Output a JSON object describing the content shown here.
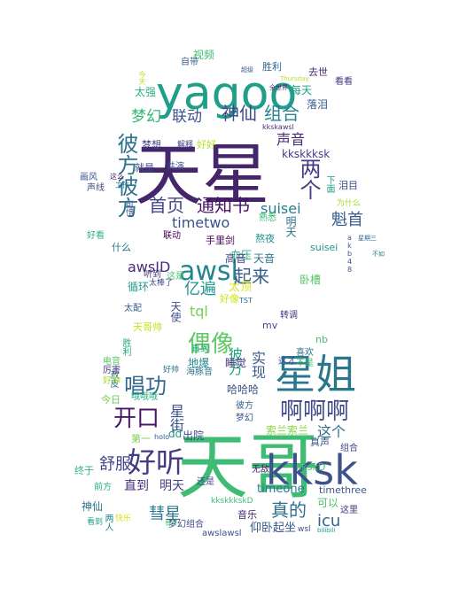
{
  "words": [
    {
      "text": "天星",
      "color": "#44276b"
    },
    {
      "text": "yagoo",
      "color": "#1f9e89"
    },
    {
      "text": "天哥",
      "color": "#3fbc73"
    },
    {
      "text": "kksk",
      "color": "#3b528b"
    },
    {
      "text": "星姐",
      "color": "#2a768e"
    },
    {
      "text": "好听",
      "color": "#443a83"
    },
    {
      "text": "啊啊啊",
      "color": "#3e4a89"
    },
    {
      "text": "awsl",
      "color": "#25858e"
    },
    {
      "text": "偶像",
      "color": "#5ec962"
    },
    {
      "text": "彼方彼方",
      "color": "#2c728e"
    },
    {
      "text": "唱功",
      "color": "#31688e"
    },
    {
      "text": "两个",
      "color": "#433e85"
    },
    {
      "text": "梦幻",
      "color": "#35b779"
    },
    {
      "text": "联动",
      "color": "#3a548c"
    },
    {
      "text": "神仙",
      "color": "#3f4889"
    },
    {
      "text": "组合",
      "color": "#26828e"
    },
    {
      "text": "起来",
      "color": "#355f8d"
    },
    {
      "text": "首页",
      "color": "#414487"
    },
    {
      "text": "通知书",
      "color": "#471365"
    },
    {
      "text": "魁首",
      "color": "#365d8d"
    },
    {
      "text": "开口",
      "color": "#481668"
    },
    {
      "text": "真的",
      "color": "#2d708e"
    },
    {
      "text": "icu",
      "color": "#31678e"
    },
    {
      "text": "彗星",
      "color": "#297a8e"
    },
    {
      "text": "舒服",
      "color": "#404688"
    },
    {
      "text": "亿遍",
      "color": "#1f968b"
    },
    {
      "text": "timetwo",
      "color": "#3b528b"
    },
    {
      "text": "suisei",
      "color": "#287d8e"
    },
    {
      "text": "awsID",
      "color": "#472d7b"
    },
    {
      "text": "tql",
      "color": "#7ad151"
    },
    {
      "text": "声音",
      "color": "#482878"
    },
    {
      "text": "直到",
      "color": "#46327e"
    },
    {
      "text": "明天",
      "color": "#423f85"
    },
    {
      "text": "这个",
      "color": "#2e6f8e"
    },
    {
      "text": "实现",
      "color": "#38588c"
    },
    {
      "text": "彼方",
      "color": "#21a585"
    },
    {
      "text": "星街",
      "color": "#3b518b"
    },
    {
      "text": "timeone",
      "color": "#2a788e"
    },
    {
      "text": "视频",
      "color": "#3dbc74"
    },
    {
      "text": "太强",
      "color": "#2ab07f"
    },
    {
      "text": "每天",
      "color": "#1fa187"
    },
    {
      "text": "落泪",
      "color": "#365c8d"
    },
    {
      "text": "kkskkksk",
      "color": "#443b84"
    },
    {
      "text": "梦想",
      "color": "#404588"
    },
    {
      "text": "好好",
      "color": "#b5de2b"
    },
    {
      "text": "就是",
      "color": "#3e4c8a"
    },
    {
      "text": "血压",
      "color": "#25ab82"
    },
    {
      "text": "高音",
      "color": "#3f4788"
    },
    {
      "text": "天音",
      "color": "#2b758e"
    },
    {
      "text": "卧槽",
      "color": "#54c568"
    },
    {
      "text": "太顶",
      "color": "#dde318"
    },
    {
      "text": "循环",
      "color": "#1f9a8a"
    },
    {
      "text": "什么",
      "color": "#2a768e"
    },
    {
      "text": "睡觉",
      "color": "#46307e"
    },
    {
      "text": "哈哈哈",
      "color": "#3a538b"
    },
    {
      "text": "地爆",
      "color": "#23888e"
    },
    {
      "text": "出院",
      "color": "#3e4989"
    },
    {
      "text": "今日",
      "color": "#6ece58"
    },
    {
      "text": "索兰索兰",
      "color": "#8bd646"
    },
    {
      "text": "前方",
      "color": "#29af7f"
    },
    {
      "text": "神仙",
      "color": "#2c738e"
    },
    {
      "text": "可以",
      "color": "#4ac16d"
    },
    {
      "text": "音乐",
      "color": "#482071"
    },
    {
      "text": "timethree",
      "color": "#39568c"
    },
    {
      "text": "这里",
      "color": "#46337f"
    },
    {
      "text": "组合",
      "color": "#424086"
    },
    {
      "text": "真声",
      "color": "#3a548c"
    },
    {
      "text": "仰卧起坐",
      "color": "#38598c"
    },
    {
      "text": "dd",
      "color": "#1f998a"
    },
    {
      "text": "第一",
      "color": "#7ad151"
    },
    {
      "text": "终于",
      "color": "#2fb47c"
    },
    {
      "text": "kkskD",
      "color": "#44bf70"
    },
    {
      "text": "无敌",
      "color": "#481c6e"
    },
    {
      "text": "手里剑",
      "color": "#440154"
    },
    {
      "text": "熬夜",
      "color": "#20938c"
    },
    {
      "text": "胜利",
      "color": "#31688e"
    },
    {
      "text": "去世",
      "color": "#472a7a"
    },
    {
      "text": "自带",
      "color": "#34618d"
    },
    {
      "text": "看看",
      "color": "#453882"
    },
    {
      "text": "共演",
      "color": "#3b518b"
    },
    {
      "text": "好看",
      "color": "#2db27d"
    },
    {
      "text": "声线",
      "color": "#404588"
    },
    {
      "text": "画风",
      "color": "#38588c"
    },
    {
      "text": "联动",
      "color": "#440256"
    },
    {
      "text": "听到",
      "color": "#453781"
    },
    {
      "text": "这是",
      "color": "#4ac16d"
    },
    {
      "text": "天使",
      "color": "#3e4c8a"
    },
    {
      "text": "天哥帅",
      "color": "#c8e020"
    },
    {
      "text": "太配",
      "color": "#355e8d"
    },
    {
      "text": "太棒了",
      "color": "#3d4e8a"
    },
    {
      "text": "直到",
      "color": "#22a785"
    },
    {
      "text": "熟悉",
      "color": "#3dbc74"
    },
    {
      "text": "电音",
      "color": "#5cc863"
    },
    {
      "text": "敖皮",
      "color": "#2e6e8e"
    },
    {
      "text": "胜利",
      "color": "#22a785"
    },
    {
      "text": "厉害",
      "color": "#453882"
    },
    {
      "text": "还是",
      "color": "#3f4889"
    },
    {
      "text": "两人",
      "color": "#24878e"
    },
    {
      "text": "梦幻组合",
      "color": "#404588"
    },
    {
      "text": "awslawsl",
      "color": "#3c4f8a"
    },
    {
      "text": "kkskkkskD",
      "color": "#46c06f"
    },
    {
      "text": "彼方",
      "color": "#34608d"
    },
    {
      "text": "梦幻",
      "color": "#375a8c"
    },
    {
      "text": "suisei",
      "color": "#20928c"
    },
    {
      "text": "明天",
      "color": "#2c728e"
    },
    {
      "text": "快乐",
      "color": "#dde318"
    },
    {
      "text": "看到",
      "color": "#1fa088"
    },
    {
      "text": "泪目",
      "color": "#3e4989"
    },
    {
      "text": "为什么",
      "color": "#a5db36"
    },
    {
      "text": "下面",
      "color": "#1f9a8a"
    },
    {
      "text": "mv",
      "color": "#3f4788"
    },
    {
      "text": "好像",
      "color": "#d2e21b"
    },
    {
      "text": "喜欢",
      "color": "#2c738e"
    },
    {
      "text": "不是",
      "color": "#3dbc74"
    },
    {
      "text": "这才",
      "color": "#375b8d"
    },
    {
      "text": "海豚音",
      "color": "#2b758e"
    },
    {
      "text": "转调",
      "color": "#46307e"
    },
    {
      "text": "nb",
      "color": "#3fbc73"
    },
    {
      "text": "哦哦哦",
      "color": "#26ad81"
    },
    {
      "text": "好帅",
      "color": "#a8db34"
    },
    {
      "text": "好帅",
      "color": "#2e6e8e"
    },
    {
      "text": "holo",
      "color": "#3b528b"
    },
    {
      "text": "TST",
      "color": "#2f6c8e"
    },
    {
      "text": "kkskawsl",
      "color": "#46337f"
    },
    {
      "text": "akb48",
      "color": "#39568c"
    },
    {
      "text": "Thursday",
      "color": "#b5de2b"
    },
    {
      "text": "wsl",
      "color": "#3e4a89"
    },
    {
      "text": "星期三",
      "color": "#306a8e"
    },
    {
      "text": "不如",
      "color": "#26828e"
    },
    {
      "text": "bilibili",
      "color": "#1f9e89"
    },
    {
      "text": "有点",
      "color": "#46c06f"
    },
    {
      "text": "解释",
      "color": "#404588"
    },
    {
      "text": "工作",
      "color": "#2d708e"
    },
    {
      "text": "这么",
      "color": "#481a6c"
    },
    {
      "text": "今天",
      "color": "#b5de2b"
    },
    {
      "text": "可惜",
      "color": "#3b528b"
    },
    {
      "text": "全世界",
      "color": "#472878"
    },
    {
      "text": "超级",
      "color": "#375a8c"
    }
  ]
}
